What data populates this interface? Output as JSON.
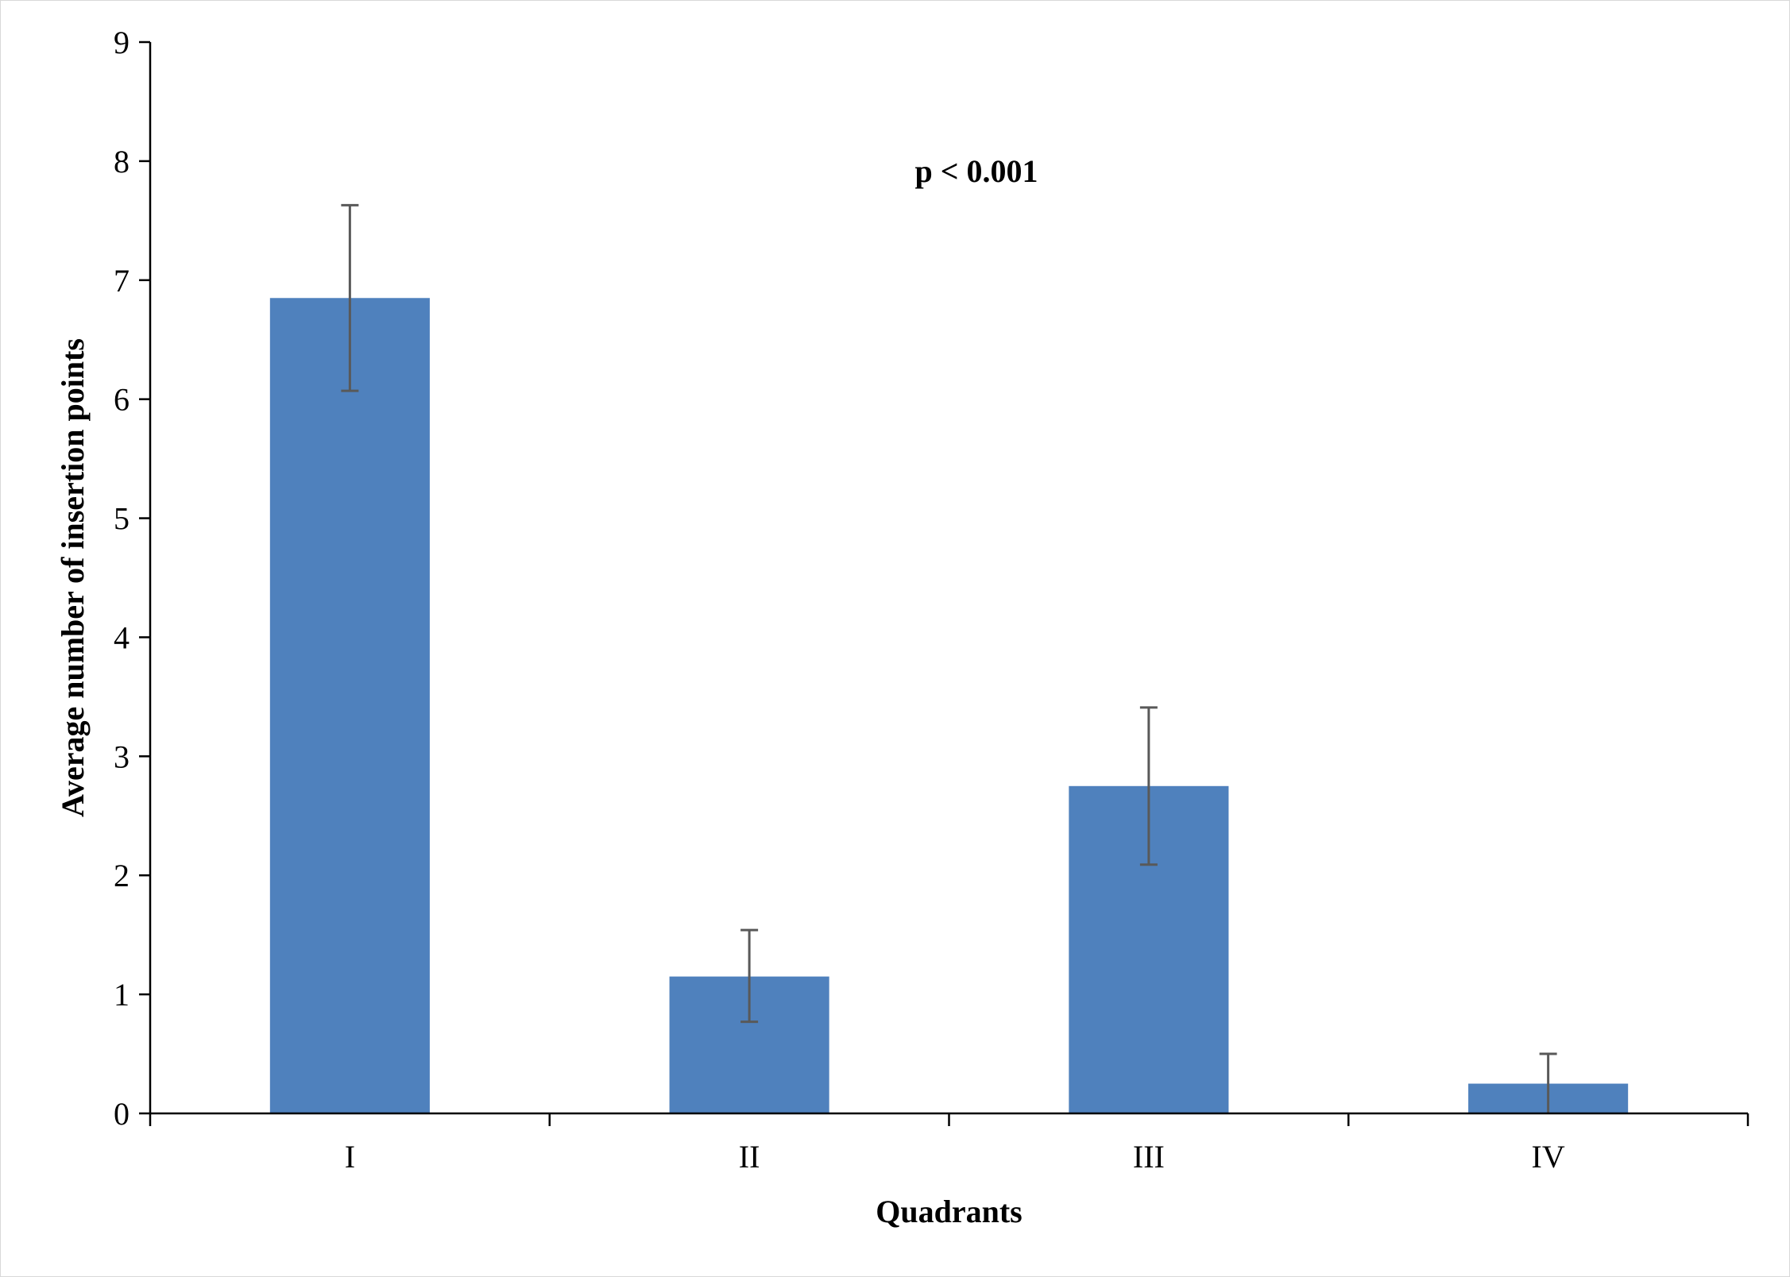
{
  "chart_data": {
    "type": "bar",
    "title": "",
    "xlabel": "Quadrants",
    "ylabel": "Average number of insertion points",
    "categories": [
      "I",
      "II",
      "III",
      "IV"
    ],
    "values": [
      6.85,
      1.15,
      2.75,
      0.25
    ],
    "error_plus": [
      0.78,
      0.39,
      0.66,
      0.25
    ],
    "error_minus": [
      0.78,
      0.38,
      0.66,
      0.25
    ],
    "ylim": [
      0,
      9
    ],
    "yticks": [
      "0",
      "1",
      "2",
      "3",
      "4",
      "5",
      "6",
      "7",
      "8",
      "9"
    ],
    "annotation": "p < 0.001",
    "grid": false,
    "legend": "none",
    "bar_color": "#4f81bd",
    "error_bar_color": "#595959"
  }
}
